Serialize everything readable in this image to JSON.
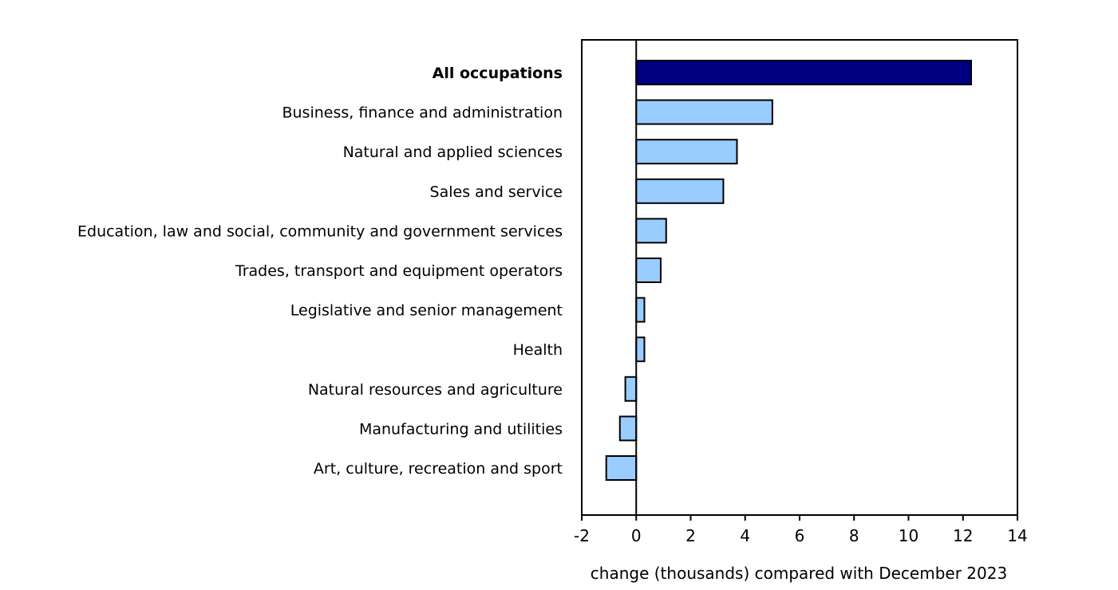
{
  "chart_data": {
    "type": "bar",
    "orientation": "horizontal",
    "title": "",
    "xlabel": "change (thousands) compared with December 2023",
    "ylabel": "",
    "xlim": [
      -2,
      14
    ],
    "xticks": [
      -2,
      0,
      2,
      4,
      6,
      8,
      10,
      12,
      14
    ],
    "grid": false,
    "categories": [
      "All occupations",
      "Business, finance and administration",
      "Natural and applied sciences",
      "Sales and service",
      "Education, law and social, community and government services",
      "Trades, transport and equipment operators",
      "Legislative and senior management",
      "Health",
      "Natural resources and agriculture",
      "Manufacturing and utilities",
      "Art, culture, recreation and sport"
    ],
    "values": [
      12.3,
      5.0,
      3.7,
      3.2,
      1.1,
      0.9,
      0.3,
      0.3,
      -0.4,
      -0.6,
      -1.1
    ],
    "bold_categories": [
      "All occupations"
    ],
    "colors": {
      "total": "#000080",
      "bars": "#99ccff",
      "outline": "#000000"
    }
  }
}
